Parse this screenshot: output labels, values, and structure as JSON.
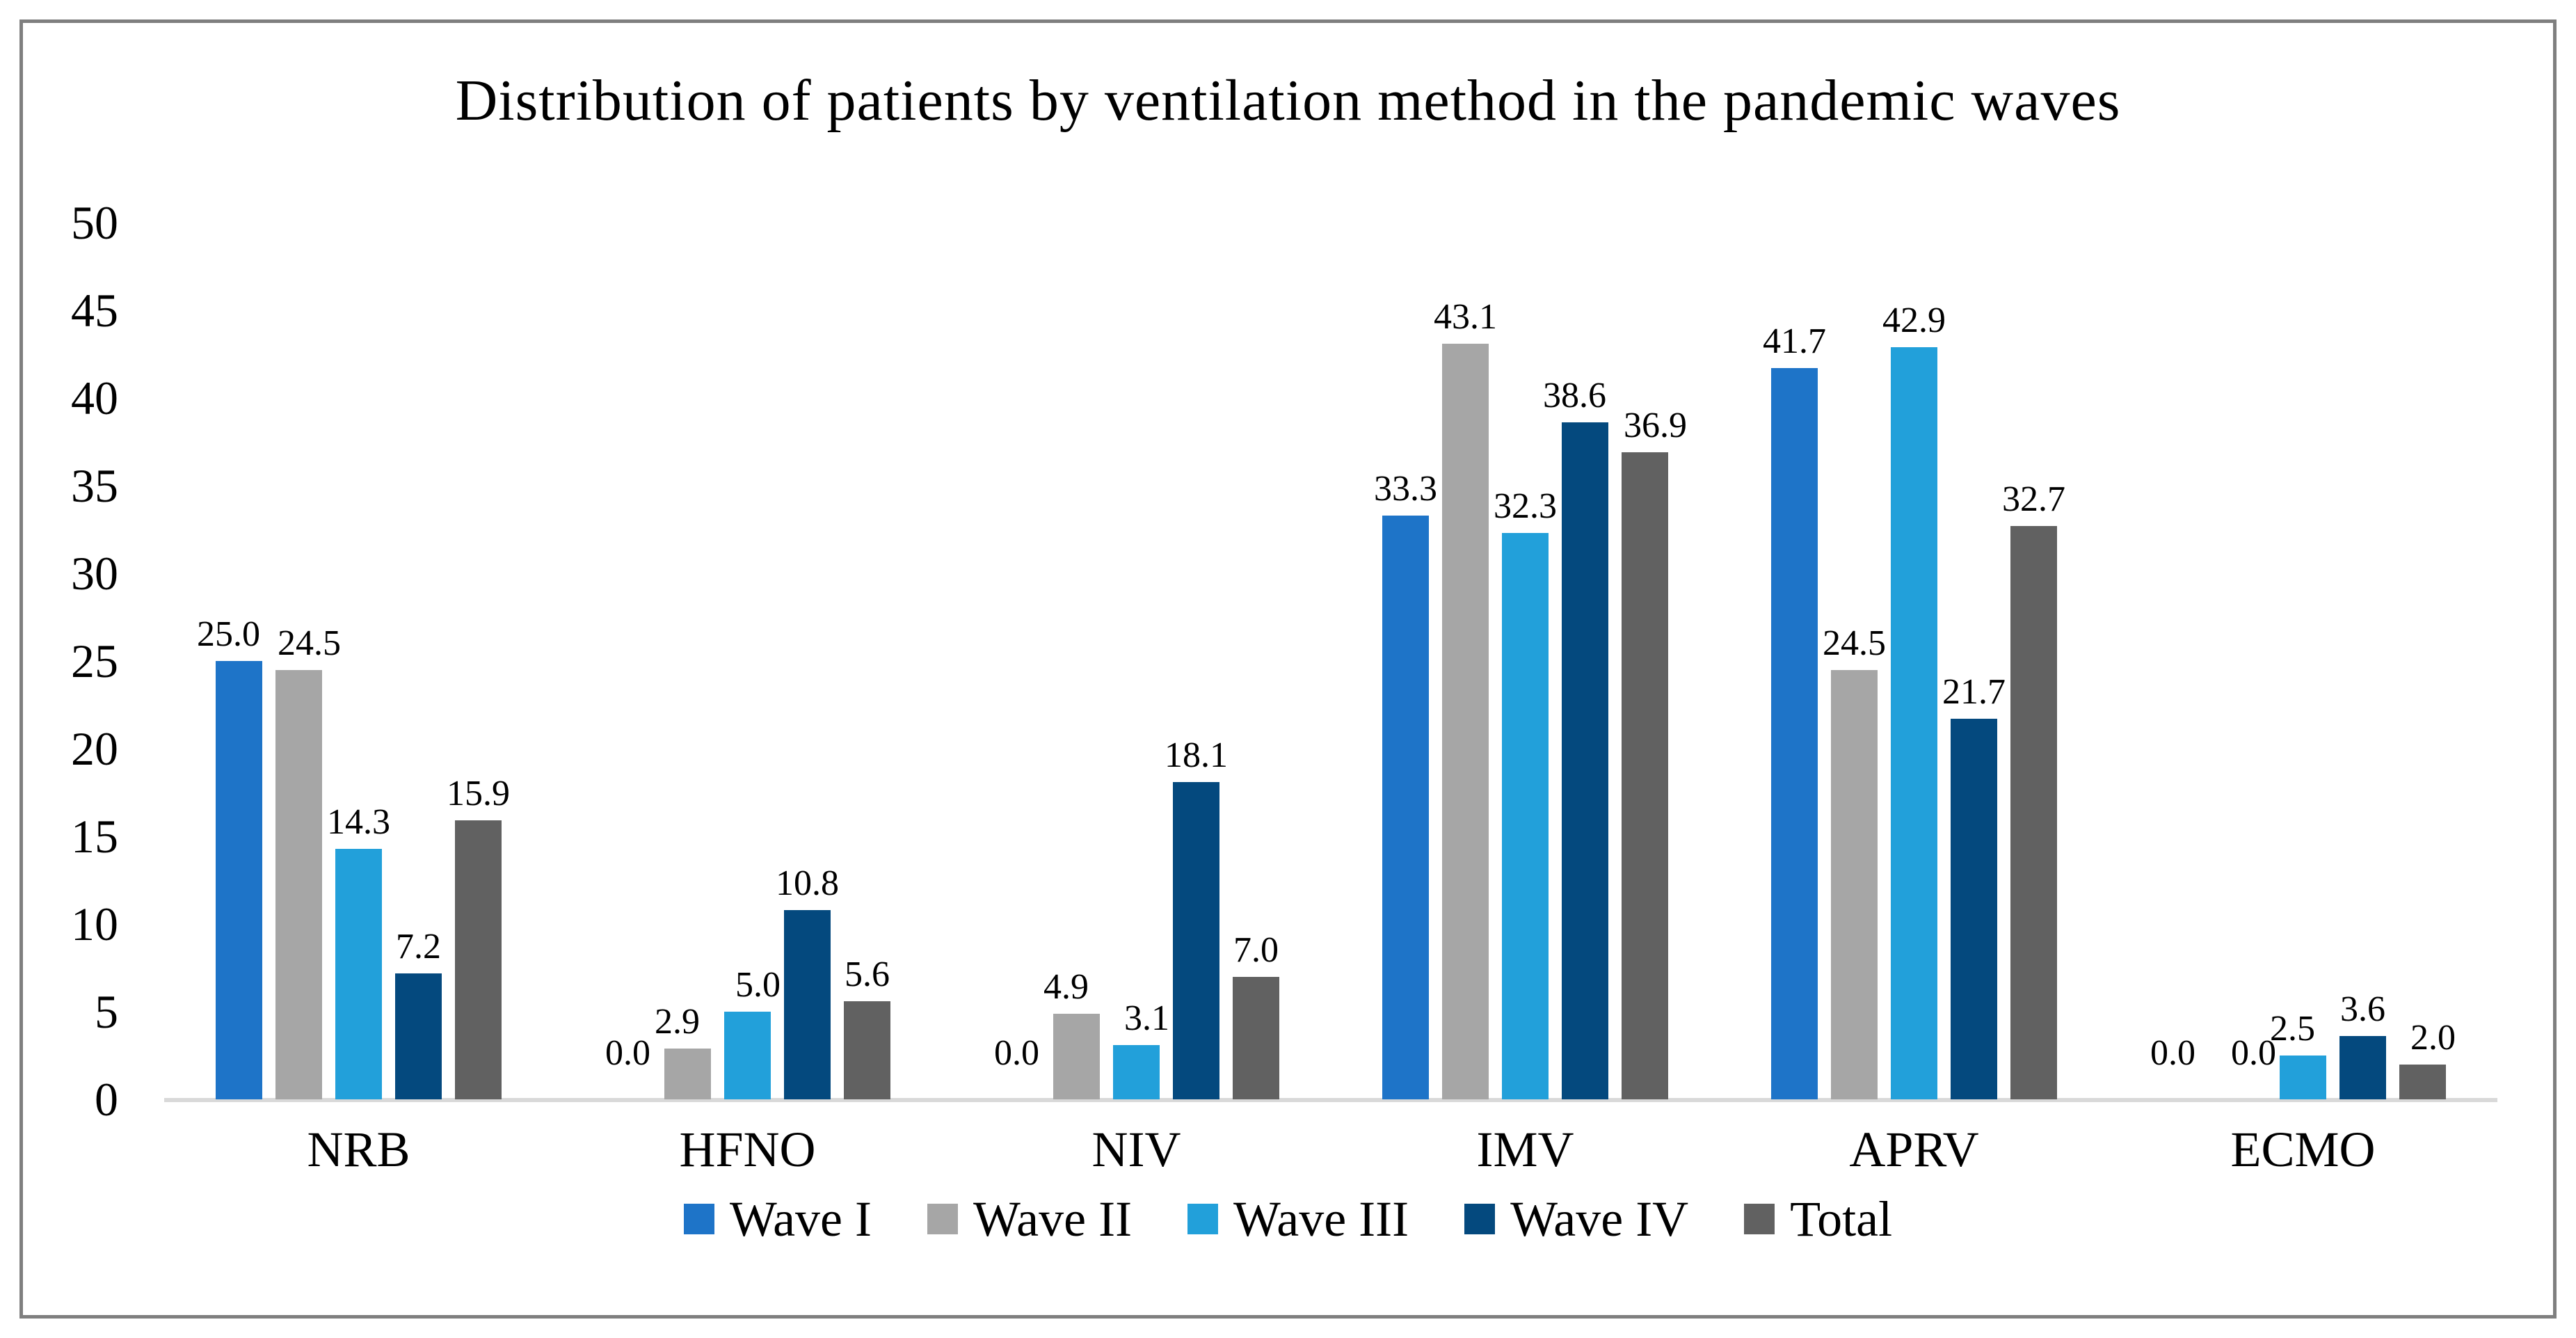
{
  "title": "Distribution of patients by ventilation method in the pandemic waves",
  "chart_data": {
    "type": "bar",
    "categories": [
      "NRB",
      "HFNO",
      "NIV",
      "IMV",
      "APRV",
      "ECMO"
    ],
    "series": [
      {
        "name": "Wave I",
        "color": "#1e74c8",
        "values": [
          25.0,
          0.0,
          0.0,
          33.3,
          41.7,
          0.0
        ]
      },
      {
        "name": "Wave II",
        "color": "#a6a6a6",
        "values": [
          24.5,
          2.9,
          4.9,
          43.1,
          24.5,
          0.0
        ]
      },
      {
        "name": "Wave III",
        "color": "#22a0da",
        "values": [
          14.3,
          5.0,
          3.1,
          32.3,
          42.9,
          2.5
        ]
      },
      {
        "name": "Wave IV",
        "color": "#04497e",
        "values": [
          7.2,
          10.8,
          18.1,
          38.6,
          21.7,
          3.6
        ]
      },
      {
        "name": "Total",
        "color": "#616161",
        "values": [
          15.9,
          5.6,
          7.0,
          36.9,
          32.7,
          2.0
        ]
      }
    ],
    "ylim": [
      0,
      50
    ],
    "yticks": [
      0,
      5,
      10,
      15,
      20,
      25,
      30,
      35,
      40,
      45,
      50
    ],
    "value_label_decimals": 1,
    "grid": "off",
    "legend_position": "bottom",
    "axis_line_color": "#d9d9d9",
    "frame_border_color": "#7f7f7f",
    "text_color": "#000000"
  }
}
